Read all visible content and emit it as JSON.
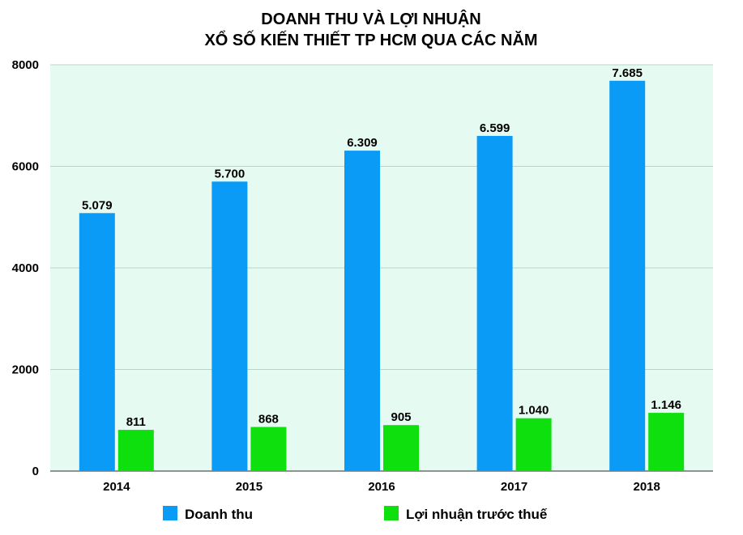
{
  "chart_data": {
    "type": "bar",
    "title_line1": "DOANH THU VÀ LỢI NHUẬN",
    "title_line2": "XỔ SỐ KIẾN THIẾT TP HCM QUA CÁC NĂM",
    "categories": [
      "2014",
      "2015",
      "2016",
      "2017",
      "2018"
    ],
    "series": [
      {
        "name": "Doanh thu",
        "color": "#0a9bf6",
        "values": [
          5079,
          5700,
          6309,
          6599,
          7685
        ],
        "labels": [
          "5.079",
          "5.700",
          "6.309",
          "6.599",
          "7.685"
        ]
      },
      {
        "name": "Lợi nhuận trước thuế",
        "color": "#0de00d",
        "values": [
          811,
          868,
          905,
          1040,
          1146
        ],
        "labels": [
          "811",
          "868",
          "905",
          "1.040",
          "1.146"
        ]
      }
    ],
    "yticks": [
      "0",
      "2000",
      "4000",
      "6000",
      "8000"
    ],
    "ylim": [
      0,
      8000
    ],
    "grid": true,
    "plot_background": "#e5fbf2",
    "legend_position": "bottom"
  }
}
